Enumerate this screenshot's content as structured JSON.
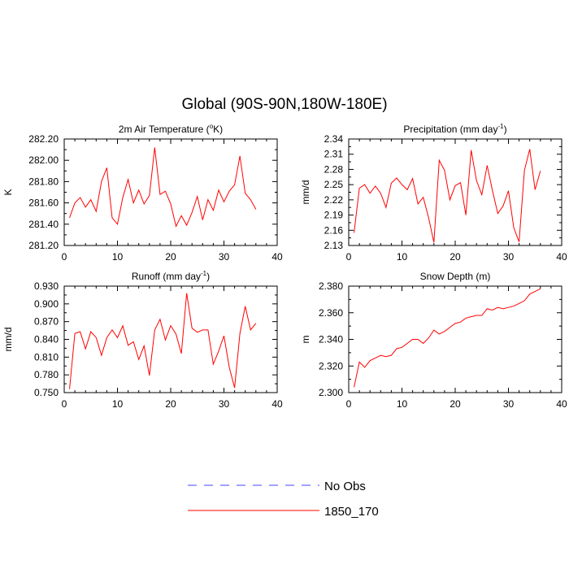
{
  "figure": {
    "title": "Global (90S-90N,180W-180E)"
  },
  "legend": {
    "items": [
      {
        "label": "No Obs",
        "color": "#4444ff",
        "dashed": true
      },
      {
        "label": "1850_170",
        "color": "#ff0000",
        "dashed": false
      }
    ]
  },
  "chart_data": [
    {
      "type": "line",
      "title": "2m Air Temperature (",
      "title_sup": "o",
      "title_tail": "K)",
      "xlabel": "",
      "ylabel": "K",
      "xlim": [
        0,
        40
      ],
      "ylim": [
        281.2,
        282.2
      ],
      "xticks": [
        0,
        10,
        20,
        30,
        40
      ],
      "yticks": [
        281.2,
        281.4,
        281.6,
        281.8,
        282.0,
        282.2
      ],
      "ytick_labels": [
        "281.20",
        "281.40",
        "281.60",
        "281.80",
        "282.00",
        "282.20"
      ],
      "series": [
        {
          "name": "1850_170",
          "color": "#ff0000",
          "x": [
            1,
            2,
            3,
            4,
            5,
            6,
            7,
            8,
            9,
            10,
            11,
            12,
            13,
            14,
            15,
            16,
            17,
            18,
            19,
            20,
            21,
            22,
            23,
            24,
            25,
            26,
            27,
            28,
            29,
            30,
            31,
            32,
            33,
            34,
            35,
            36
          ],
          "values": [
            281.46,
            281.6,
            281.65,
            281.56,
            281.63,
            281.52,
            281.8,
            281.93,
            281.46,
            281.4,
            281.65,
            281.82,
            281.6,
            281.72,
            281.59,
            281.67,
            282.12,
            281.68,
            281.71,
            281.59,
            281.38,
            281.48,
            281.39,
            281.51,
            281.66,
            281.44,
            281.63,
            281.53,
            281.72,
            281.61,
            281.71,
            281.77,
            282.04,
            281.69,
            281.63,
            281.54
          ]
        }
      ]
    },
    {
      "type": "line",
      "title": "Precipitation (mm day",
      "title_sup": "-1",
      "title_tail": ")",
      "xlabel": "",
      "ylabel": "mm/d",
      "xlim": [
        0,
        40
      ],
      "ylim": [
        2.13,
        2.34
      ],
      "xticks": [
        0,
        10,
        20,
        30,
        40
      ],
      "yticks": [
        2.13,
        2.16,
        2.19,
        2.22,
        2.25,
        2.28,
        2.31,
        2.34
      ],
      "ytick_labels": [
        "2.13",
        "2.16",
        "2.19",
        "2.22",
        "2.25",
        "2.28",
        "2.31",
        "2.34"
      ],
      "series": [
        {
          "name": "1850_170",
          "color": "#ff0000",
          "x": [
            1,
            2,
            3,
            4,
            5,
            6,
            7,
            8,
            9,
            10,
            11,
            12,
            13,
            14,
            15,
            16,
            17,
            18,
            19,
            20,
            21,
            22,
            23,
            24,
            25,
            26,
            27,
            28,
            29,
            30,
            31,
            32,
            33,
            34,
            35,
            36
          ],
          "values": [
            2.155,
            2.243,
            2.25,
            2.233,
            2.247,
            2.233,
            2.205,
            2.253,
            2.263,
            2.25,
            2.24,
            2.262,
            2.212,
            2.225,
            2.185,
            2.136,
            2.298,
            2.278,
            2.22,
            2.248,
            2.254,
            2.19,
            2.318,
            2.258,
            2.23,
            2.288,
            2.238,
            2.193,
            2.208,
            2.238,
            2.165,
            2.137,
            2.278,
            2.32,
            2.24,
            2.277
          ]
        }
      ]
    },
    {
      "type": "line",
      "title": "Runoff (mm day",
      "title_sup": "-1",
      "title_tail": ")",
      "xlabel": "",
      "ylabel": "mm/d",
      "xlim": [
        0,
        40
      ],
      "ylim": [
        0.75,
        0.93
      ],
      "xticks": [
        0,
        10,
        20,
        30,
        40
      ],
      "yticks": [
        0.75,
        0.78,
        0.81,
        0.84,
        0.87,
        0.9,
        0.93
      ],
      "ytick_labels": [
        "0.750",
        "0.780",
        "0.810",
        "0.840",
        "0.870",
        "0.900",
        "0.930"
      ],
      "series": [
        {
          "name": "1850_170",
          "color": "#ff0000",
          "x": [
            1,
            2,
            3,
            4,
            5,
            6,
            7,
            8,
            9,
            10,
            11,
            12,
            13,
            14,
            15,
            16,
            17,
            18,
            19,
            20,
            21,
            22,
            23,
            24,
            25,
            26,
            27,
            28,
            29,
            30,
            31,
            32,
            33,
            34,
            35,
            36
          ],
          "values": [
            0.756,
            0.85,
            0.853,
            0.824,
            0.853,
            0.843,
            0.813,
            0.843,
            0.856,
            0.843,
            0.863,
            0.83,
            0.836,
            0.806,
            0.829,
            0.779,
            0.856,
            0.874,
            0.839,
            0.863,
            0.849,
            0.816,
            0.918,
            0.859,
            0.852,
            0.856,
            0.856,
            0.798,
            0.82,
            0.846,
            0.793,
            0.758,
            0.85,
            0.896,
            0.856,
            0.867
          ]
        }
      ]
    },
    {
      "type": "line",
      "title": "Snow Depth (m)",
      "title_sup": "",
      "title_tail": "",
      "xlabel": "",
      "ylabel": "m",
      "xlim": [
        0,
        40
      ],
      "ylim": [
        2.3,
        2.38
      ],
      "xticks": [
        0,
        10,
        20,
        30,
        40
      ],
      "yticks": [
        2.3,
        2.32,
        2.34,
        2.36,
        2.38
      ],
      "ytick_labels": [
        "2.300",
        "2.320",
        "2.340",
        "2.360",
        "2.380"
      ],
      "series": [
        {
          "name": "1850_170",
          "color": "#ff0000",
          "x": [
            1,
            2,
            3,
            4,
            5,
            6,
            7,
            8,
            9,
            10,
            11,
            12,
            13,
            14,
            15,
            16,
            17,
            18,
            19,
            20,
            21,
            22,
            23,
            24,
            25,
            26,
            27,
            28,
            29,
            30,
            31,
            32,
            33,
            34,
            35,
            36
          ],
          "values": [
            2.304,
            2.323,
            2.319,
            2.324,
            2.326,
            2.328,
            2.327,
            2.328,
            2.333,
            2.334,
            2.337,
            2.34,
            2.34,
            2.337,
            2.341,
            2.347,
            2.344,
            2.346,
            2.349,
            2.352,
            2.353,
            2.356,
            2.357,
            2.358,
            2.358,
            2.363,
            2.362,
            2.364,
            2.363,
            2.364,
            2.365,
            2.367,
            2.369,
            2.374,
            2.376,
            2.378
          ]
        }
      ]
    }
  ]
}
